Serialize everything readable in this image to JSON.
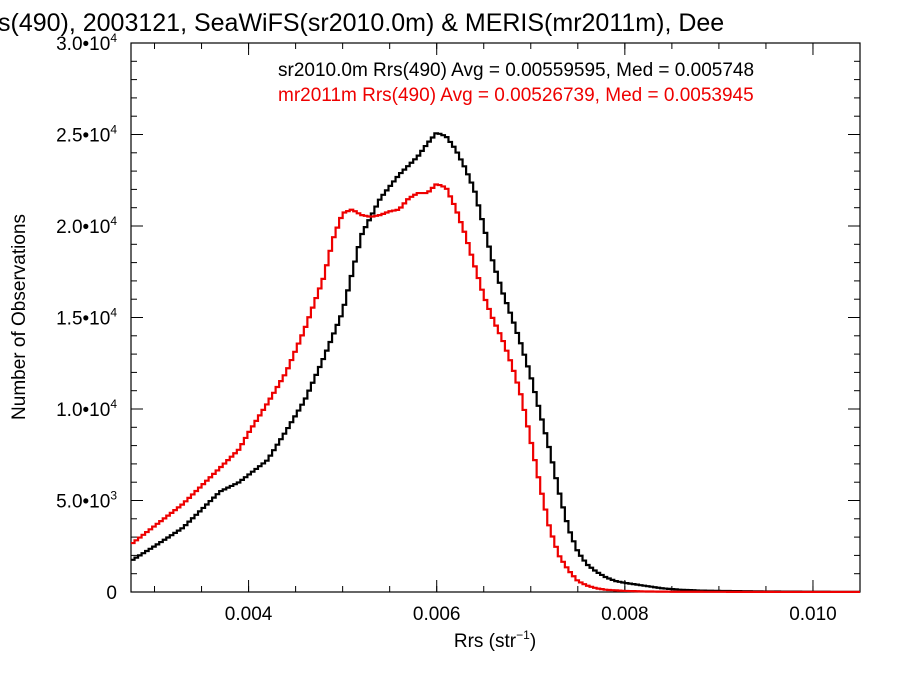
{
  "chart_data": {
    "type": "line",
    "title": "s(490), 2003121, SeaWiFS(sr2010.0m) & MERIS(mr2011m), Dee",
    "xlabel": "Rrs (str",
    "xlabel_sup": "−1",
    "xlabel_end": ")",
    "ylabel": "Number of Observations",
    "xlim": [
      0.00275,
      0.0105
    ],
    "ylim": [
      0,
      30000
    ],
    "x_ticks": [
      {
        "value": 0.004,
        "label": "0.004"
      },
      {
        "value": 0.006,
        "label": "0.006"
      },
      {
        "value": 0.008,
        "label": "0.008"
      },
      {
        "value": 0.01,
        "label": "0.010"
      }
    ],
    "y_ticks": [
      {
        "value": 0,
        "mant": "0",
        "exp": ""
      },
      {
        "value": 5000,
        "mant": "5.0•10",
        "exp": "3"
      },
      {
        "value": 10000,
        "mant": "1.0•10",
        "exp": "4"
      },
      {
        "value": 15000,
        "mant": "1.5•10",
        "exp": "4"
      },
      {
        "value": 20000,
        "mant": "2.0•10",
        "exp": "4"
      },
      {
        "value": 25000,
        "mant": "2.5•10",
        "exp": "4"
      },
      {
        "value": 30000,
        "mant": "3.0•10",
        "exp": "4"
      }
    ],
    "legend_position": "top-right",
    "annotations": [
      {
        "text": "sr2010.0m Rrs(490) Avg = 0.00559595, Med = 0.005748",
        "color": "#000000"
      },
      {
        "text": "mr2011m Rrs(490) Avg = 0.00526739, Med = 0.0053945",
        "color": "#ee0000"
      }
    ],
    "series": [
      {
        "color": "#000000",
        "x": [
          0.00275,
          0.003,
          0.0033,
          0.0035,
          0.0037,
          0.0039,
          0.004,
          0.0042,
          0.0044,
          0.0046,
          0.0048,
          0.005,
          0.0052,
          0.0054,
          0.0056,
          0.0058,
          0.0059,
          0.006,
          0.0061,
          0.0062,
          0.0063,
          0.0064,
          0.0065,
          0.0066,
          0.0067,
          0.0068,
          0.0069,
          0.007,
          0.0071,
          0.0072,
          0.0073,
          0.0074,
          0.0075,
          0.0076,
          0.0077,
          0.0078,
          0.0079,
          0.008,
          0.0082,
          0.0084,
          0.0086,
          0.0088,
          0.009,
          0.0095,
          0.01,
          0.0105
        ],
        "y": [
          1700,
          2500,
          3500,
          4500,
          5500,
          6000,
          6400,
          7200,
          8800,
          10500,
          12800,
          15300,
          19500,
          21500,
          22800,
          23800,
          24500,
          25100,
          24900,
          24200,
          23200,
          22000,
          20000,
          18000,
          16400,
          15000,
          13500,
          11800,
          9800,
          7800,
          5500,
          3500,
          2200,
          1500,
          1100,
          800,
          600,
          500,
          350,
          200,
          120,
          80,
          60,
          30,
          15,
          5
        ]
      },
      {
        "color": "#ee0000",
        "x": [
          0.00275,
          0.003,
          0.0033,
          0.0035,
          0.0037,
          0.0039,
          0.004,
          0.0042,
          0.0044,
          0.0046,
          0.0048,
          0.0049,
          0.005,
          0.0051,
          0.0052,
          0.0053,
          0.0054,
          0.0055,
          0.0056,
          0.0057,
          0.0058,
          0.0059,
          0.006,
          0.0061,
          0.0062,
          0.0063,
          0.0064,
          0.0065,
          0.0066,
          0.0067,
          0.0068,
          0.0069,
          0.007,
          0.0071,
          0.0072,
          0.0073,
          0.0074,
          0.0075,
          0.0076,
          0.0077,
          0.0078,
          0.008,
          0.0082,
          0.0085,
          0.009,
          0.0095,
          0.01,
          0.0105
        ],
        "y": [
          2600,
          3600,
          4800,
          5800,
          6800,
          7800,
          8700,
          10300,
          12000,
          14400,
          17200,
          19300,
          20700,
          20900,
          20600,
          20500,
          20600,
          20800,
          20900,
          21500,
          21800,
          21800,
          22300,
          22100,
          21000,
          19600,
          17900,
          16200,
          14900,
          13800,
          12400,
          10700,
          8300,
          5800,
          3500,
          2000,
          1200,
          600,
          350,
          200,
          120,
          60,
          30,
          15,
          10,
          5,
          3,
          2
        ]
      }
    ]
  }
}
